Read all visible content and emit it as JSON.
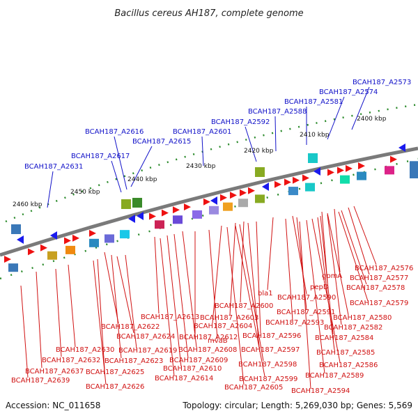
{
  "title": "Bacillus cereus AH187, complete genome",
  "footer": {
    "accession": "Accession: NC_011658",
    "stats": "Topology: circular; Length: 5,269,030 bp; Genes: 5,569"
  },
  "colors": {
    "backbone": "#7a7a7a",
    "tick": "#2a8a2a",
    "forward_gene": "#ee1111",
    "reverse_gene": "#1a1aee",
    "top_label": "#1010c8",
    "bottom_label": "#d01010"
  },
  "kbp_labels": [
    "2400 kbp",
    "2410 kbp",
    "2420 kbp",
    "2430 kbp",
    "2440 kbp",
    "2450 kbp",
    "2460 kbp"
  ],
  "top_labels": [
    "BCAH187_A2573",
    "BCAH187_A2574",
    "BCAH187_A2581",
    "BCAH187_A2588",
    "BCAH187_A2592",
    "BCAH187_A2601",
    "BCAH187_A2616",
    "BCAH187_A2615",
    "BCAH187_A2617",
    "BCAH187_A2631"
  ],
  "bottom_labels": [
    "BCAH187_A2576",
    "BCAH187_A2577",
    "gpmA",
    "BCAH187_A2578",
    "pepD",
    "BCAH187_A2579",
    "bla1",
    "BCAH187_A2590",
    "BCAH187_A2600",
    "BCAH187_A2591",
    "BCAH187_A2580",
    "BCAH187_A2613",
    "BCAH187_A2603",
    "BCAH187_A2593",
    "BCAH187_A2582",
    "BCAH187_A2622",
    "BCAH187_A2604",
    "BCAH187_A2584",
    "BCAH187_A2624",
    "BCAH187_A2612",
    "BCAH187_A2596",
    "BCAH187_A2585",
    "mvaB",
    "BCAH187_A2630",
    "BCAH187_A2619",
    "BCAH187_A2608",
    "BCAH187_A2597",
    "BCAH187_A2632",
    "BCAH187_A2623",
    "BCAH187_A2609",
    "BCAH187_A2598",
    "BCAH187_A2586",
    "BCAH187_A2637",
    "BCAH187_A2625",
    "BCAH187_A2610",
    "BCAH187_A2589",
    "BCAH187_A2639",
    "BCAH187_A2614",
    "BCAH187_A2599",
    "BCAH187_A2626",
    "BCAH187_A2605",
    "BCAH187_A2594"
  ]
}
